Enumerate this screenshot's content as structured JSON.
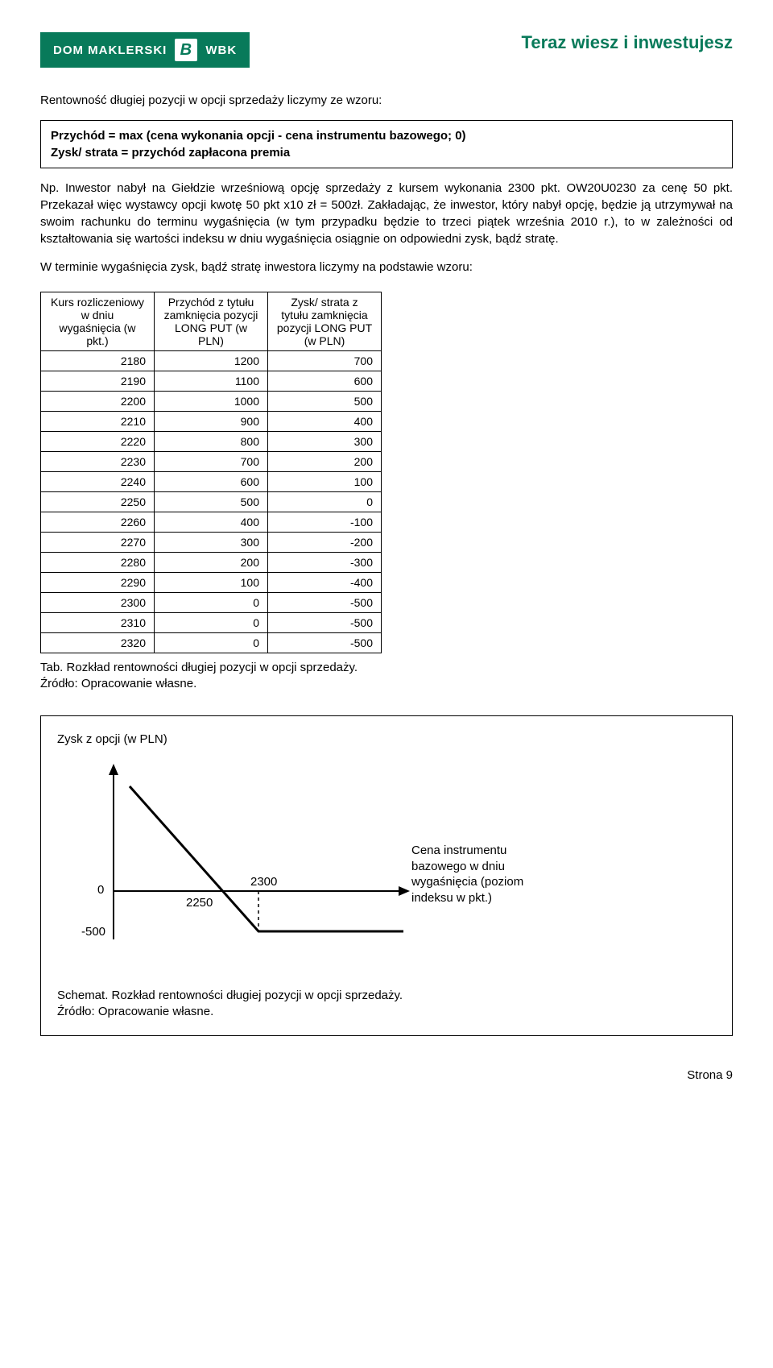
{
  "header": {
    "logo_left": "DOM MAKLERSKI",
    "logo_badge": "B",
    "logo_right": "WBK",
    "slogan": "Teraz wiesz i inwestujesz",
    "logo_bg": "#087a5a",
    "logo_fg": "#ffffff",
    "slogan_color": "#087a5a"
  },
  "intro": "Rentowność długiej pozycji w opcji sprzedaży liczymy ze wzoru:",
  "formula_line1": "Przychód = max (cena wykonania opcji - cena instrumentu bazowego; 0)",
  "formula_line2": "Zysk/ strata = przychód zapłacona premia",
  "para2": "Np. Inwestor nabył na Giełdzie wrześniową opcję sprzedaży z kursem wykonania 2300 pkt. OW20U0230 za cenę 50 pkt. Przekazał więc wystawcy opcji kwotę 50 pkt x10 zł = 500zł. Zakładając, że inwestor, który nabył opcję, będzie ją utrzymywał na swoim rachunku do terminu wygaśnięcia (w tym przypadku będzie to trzeci piątek września 2010 r.), to w zależności od kształtowania się wartości indeksu w dniu wygaśnięcia osiągnie on odpowiedni zysk, bądź stratę.",
  "para3": "W terminie wygaśnięcia zysk, bądź stratę inwestora liczymy na podstawie wzoru:",
  "table": {
    "col0": "Kurs rozliczeniowy w dniu wygaśnięcia (w pkt.)",
    "col1": "Przychód z tytułu zamknięcia pozycji LONG PUT (w PLN)",
    "col2": "Zysk/ strata z tytułu zamknięcia pozycji LONG PUT (w PLN)",
    "rows": [
      [
        "2180",
        "1200",
        "700"
      ],
      [
        "2190",
        "1100",
        "600"
      ],
      [
        "2200",
        "1000",
        "500"
      ],
      [
        "2210",
        "900",
        "400"
      ],
      [
        "2220",
        "800",
        "300"
      ],
      [
        "2230",
        "700",
        "200"
      ],
      [
        "2240",
        "600",
        "100"
      ],
      [
        "2250",
        "500",
        "0"
      ],
      [
        "2260",
        "400",
        "-100"
      ],
      [
        "2270",
        "300",
        "-200"
      ],
      [
        "2280",
        "200",
        "-300"
      ],
      [
        "2290",
        "100",
        "-400"
      ],
      [
        "2300",
        "0",
        "-500"
      ],
      [
        "2310",
        "0",
        "-500"
      ],
      [
        "2320",
        "0",
        "-500"
      ]
    ]
  },
  "table_caption_line1": "Tab. Rozkład rentowności długiej pozycji w opcji sprzedaży.",
  "table_caption_line2": "Źródło: Opracowanie własne.",
  "chart": {
    "title": "Zysk z opcji (w PLN)",
    "x_annotation": "Cena instrumentu bazowego w dniu wygaśnięcia (poziom indeksu w pkt.)",
    "zero_label": "0",
    "minus500_label": "-500",
    "x1_label": "2250",
    "x2_label": "2300",
    "line_color": "#000000",
    "caption_line1": "Schemat. Rozkład rentowności długiej pozycji w opcji sprzedaży.",
    "caption_line2": "Źródło: Opracowanie własne."
  },
  "footer": "Strona 9"
}
